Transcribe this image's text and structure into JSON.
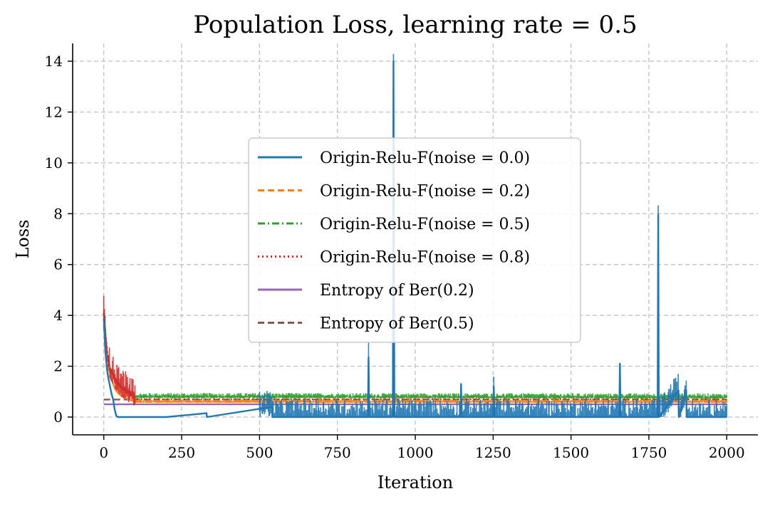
{
  "chart_data": {
    "type": "line",
    "title": "Population Loss, learning rate = 0.5",
    "xlabel": "Iteration",
    "ylabel": "Loss",
    "xlim": [
      -100,
      2100
    ],
    "ylim": [
      -0.7,
      14.7
    ],
    "xticks": [
      0,
      250,
      500,
      750,
      1000,
      1250,
      1500,
      1750,
      2000
    ],
    "yticks": [
      0,
      2,
      4,
      6,
      8,
      10,
      12,
      14
    ],
    "grid": true,
    "legend_position": "center",
    "series": [
      {
        "name": "Origin-Relu-F(noise = 0.0)",
        "color": "#1f77b4",
        "style": "solid",
        "points": [
          [
            0,
            3.9
          ],
          [
            5,
            2.6
          ],
          [
            10,
            1.9
          ],
          [
            15,
            1.5
          ],
          [
            20,
            1.2
          ],
          [
            25,
            0.9
          ],
          [
            30,
            0.7
          ],
          [
            35,
            0.3
          ],
          [
            40,
            0.05
          ],
          [
            45,
            0.0
          ],
          [
            100,
            0.0
          ],
          [
            200,
            0.0
          ],
          [
            330,
            0.15
          ],
          [
            331,
            0.0
          ],
          [
            540,
            0.4
          ],
          [
            541,
            0.0
          ],
          [
            848,
            0.0
          ],
          [
            850,
            2.35
          ],
          [
            852,
            0.0
          ],
          [
            928,
            0.0
          ],
          [
            930,
            14.0
          ],
          [
            933,
            0.0
          ],
          [
            1145,
            0.0
          ],
          [
            1147,
            1.3
          ],
          [
            1149,
            0.0
          ],
          [
            1250,
            0.0
          ],
          [
            1252,
            1.2
          ],
          [
            1254,
            0.0
          ],
          [
            1655,
            0.0
          ],
          [
            1657,
            2.1
          ],
          [
            1659,
            0.0
          ],
          [
            1778,
            0.0
          ],
          [
            1780,
            7.95
          ],
          [
            1782,
            0.0
          ],
          [
            1845,
            1.05
          ],
          [
            1846,
            0.0
          ],
          [
            1870,
            1.05
          ],
          [
            1871,
            0.0
          ],
          [
            2000,
            0.0
          ]
        ],
        "noise_range": [
          500,
          2000
        ],
        "noise_amplitude": 0.7
      },
      {
        "name": "Origin-Relu-F(noise = 0.2)",
        "color": "#ff7f0e",
        "style": "dashed",
        "points": [
          [
            0,
            3.6
          ],
          [
            10,
            2.2
          ],
          [
            20,
            1.6
          ],
          [
            40,
            1.0
          ],
          [
            60,
            0.8
          ],
          [
            100,
            0.6
          ],
          [
            2000,
            0.6
          ]
        ],
        "noise_range": [
          0,
          2000
        ],
        "noise_amplitude": 0.1
      },
      {
        "name": "Origin-Relu-F(noise = 0.5)",
        "color": "#2ca02c",
        "style": "dashdot",
        "points": [
          [
            0,
            4.1
          ],
          [
            10,
            2.6
          ],
          [
            20,
            1.9
          ],
          [
            40,
            1.4
          ],
          [
            60,
            1.1
          ],
          [
            90,
            0.9
          ],
          [
            100,
            0.8
          ],
          [
            2000,
            0.78
          ]
        ],
        "noise_range": [
          0,
          2000
        ],
        "noise_amplitude": 0.15
      },
      {
        "name": "Origin-Relu-F(noise = 0.8)",
        "color": "#d62728",
        "style": "dotted",
        "points": [
          [
            0,
            4.1
          ],
          [
            10,
            2.6
          ],
          [
            20,
            1.8
          ],
          [
            40,
            1.4
          ],
          [
            60,
            1.1
          ],
          [
            90,
            0.8
          ],
          [
            100,
            0.7
          ],
          [
            2000,
            0.7
          ]
        ],
        "noise_range": [
          0,
          100
        ],
        "noise_amplitude": 0.8
      },
      {
        "name": "Entropy of Ber(0.2)",
        "color": "#9467bd",
        "style": "solid",
        "points": [
          [
            0,
            0.5
          ],
          [
            2000,
            0.5
          ]
        ]
      },
      {
        "name": "Entropy of Ber(0.5)",
        "color": "#8c564b",
        "style": "dashed",
        "points": [
          [
            0,
            0.69
          ],
          [
            2000,
            0.69
          ]
        ]
      }
    ]
  }
}
